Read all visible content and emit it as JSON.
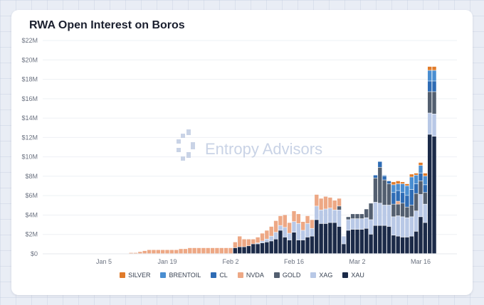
{
  "title": "RWA Open Interest on Boros",
  "watermark": "Entropy Advisors",
  "colors": {
    "SILVER": "#e07b2a",
    "BRENTOIL": "#4a8ed1",
    "CL": "#2e6cb5",
    "NVDA": "#eda885",
    "GOLD": "#535f70",
    "XAG": "#b8c8e6",
    "XAU": "#1b2a48",
    "grid": "#eef0f4",
    "watermark": "#c9d3e6"
  },
  "chart_data": {
    "type": "bar",
    "stacked": true,
    "ylim": [
      0,
      22000000
    ],
    "y_ticks": [
      0,
      2000000,
      4000000,
      6000000,
      8000000,
      10000000,
      12000000,
      14000000,
      16000000,
      18000000,
      20000000,
      22000000
    ],
    "y_tick_labels": [
      "$0",
      "$2M",
      "$4M",
      "$6M",
      "$8M",
      "$10M",
      "$12M",
      "$14M",
      "$16M",
      "$18M",
      "$20M",
      "$22M"
    ],
    "x_ticks": [
      "Jan 5",
      "Jan 19",
      "Feb 2",
      "Feb 16",
      "Mar 2",
      "Mar 16"
    ],
    "x_tick_dates": [
      "2025-01-05",
      "2025-01-19",
      "2025-02-02",
      "2025-02-16",
      "2025-03-02",
      "2025-03-16"
    ],
    "grid": "horizontal",
    "legend_position": "bottom",
    "dates": [
      "2025-01-09",
      "2025-01-10",
      "2025-01-11",
      "2025-01-12",
      "2025-01-13",
      "2025-01-14",
      "2025-01-15",
      "2025-01-16",
      "2025-01-17",
      "2025-01-18",
      "2025-01-19",
      "2025-01-20",
      "2025-01-21",
      "2025-01-22",
      "2025-01-23",
      "2025-01-24",
      "2025-01-25",
      "2025-01-26",
      "2025-01-27",
      "2025-01-28",
      "2025-01-29",
      "2025-01-30",
      "2025-01-31",
      "2025-02-01",
      "2025-02-02",
      "2025-02-03",
      "2025-02-04",
      "2025-02-05",
      "2025-02-06",
      "2025-02-07",
      "2025-02-08",
      "2025-02-09",
      "2025-02-10",
      "2025-02-11",
      "2025-02-12",
      "2025-02-13",
      "2025-02-14",
      "2025-02-15",
      "2025-02-16",
      "2025-02-17",
      "2025-02-18",
      "2025-02-19",
      "2025-02-20",
      "2025-02-21",
      "2025-02-22",
      "2025-02-23",
      "2025-02-24",
      "2025-02-25",
      "2025-02-26",
      "2025-02-27",
      "2025-02-28",
      "2025-03-01",
      "2025-03-02",
      "2025-03-03",
      "2025-03-04",
      "2025-03-05",
      "2025-03-06",
      "2025-03-07",
      "2025-03-08",
      "2025-03-09",
      "2025-03-10",
      "2025-03-11",
      "2025-03-12",
      "2025-03-13",
      "2025-03-14",
      "2025-03-15",
      "2025-03-16",
      "2025-03-17",
      "2025-03-18",
      "2025-03-19",
      "2025-03-20"
    ],
    "series": [
      {
        "name": "XAU",
        "values": [
          0,
          0,
          0,
          0,
          0,
          0,
          0,
          0,
          0,
          0,
          0,
          0,
          0,
          0,
          0,
          0,
          0,
          0,
          0,
          0,
          0,
          0,
          0,
          0,
          0,
          600000,
          700000,
          700000,
          800000,
          1000000,
          1000000,
          1100000,
          1200000,
          1300000,
          1500000,
          2400000,
          1700000,
          1400000,
          2200000,
          1400000,
          1400000,
          1700000,
          1800000,
          3500000,
          3100000,
          3100000,
          3200000,
          3200000,
          2800000,
          1000000,
          2400000,
          2500000,
          2500000,
          2500000,
          2600000,
          2000000,
          2900000,
          2900000,
          2900000,
          2800000,
          1900000,
          1800000,
          1700000,
          1700000,
          1800000,
          2300000,
          3800000,
          3200000,
          12300000,
          12100000,
          0
        ]
      },
      {
        "name": "XAG",
        "values": [
          0,
          0,
          0,
          0,
          0,
          0,
          0,
          0,
          0,
          0,
          0,
          0,
          0,
          0,
          0,
          0,
          0,
          0,
          0,
          0,
          0,
          0,
          0,
          0,
          0,
          0,
          0,
          0,
          0,
          0,
          100000,
          200000,
          300000,
          500000,
          700000,
          500000,
          1000000,
          700000,
          1100000,
          1700000,
          1000000,
          1400000,
          800000,
          1400000,
          1400000,
          1500000,
          1500000,
          1300000,
          1700000,
          800000,
          1100000,
          1100000,
          1100000,
          1100000,
          1100000,
          1500000,
          2400000,
          2300000,
          2100000,
          2200000,
          1900000,
          2100000,
          2100000,
          2000000,
          2000000,
          2100000,
          2300000,
          1900000,
          2200000,
          2300000,
          0
        ]
      },
      {
        "name": "GOLD",
        "values": [
          0,
          0,
          0,
          0,
          0,
          0,
          0,
          0,
          0,
          0,
          0,
          0,
          0,
          0,
          0,
          0,
          0,
          0,
          0,
          0,
          0,
          0,
          0,
          0,
          0,
          0,
          0,
          0,
          0,
          0,
          0,
          0,
          0,
          0,
          0,
          0,
          0,
          0,
          0,
          0,
          0,
          0,
          0,
          0,
          0,
          0,
          0,
          0,
          400000,
          0,
          300000,
          500000,
          500000,
          500000,
          900000,
          1700000,
          2500000,
          3700000,
          2600000,
          2200000,
          1300000,
          1200000,
          1400000,
          1100000,
          1200000,
          1800000,
          1400000,
          1200000,
          2200000,
          2300000,
          0
        ]
      },
      {
        "name": "NVDA",
        "values": [
          0,
          0,
          100000,
          100000,
          200000,
          300000,
          400000,
          400000,
          400000,
          400000,
          400000,
          400000,
          400000,
          500000,
          500000,
          600000,
          600000,
          600000,
          600000,
          600000,
          600000,
          600000,
          600000,
          600000,
          600000,
          600000,
          1100000,
          800000,
          700000,
          500000,
          600000,
          800000,
          900000,
          1000000,
          1200000,
          1000000,
          1300000,
          1100000,
          1100000,
          1000000,
          900000,
          800000,
          900000,
          1200000,
          1200000,
          1300000,
          1100000,
          1000000,
          800000,
          0,
          0,
          0,
          0,
          0,
          0,
          0,
          0,
          0,
          0,
          0,
          0,
          300000,
          0,
          0,
          0,
          0,
          0,
          0,
          0,
          0,
          0
        ]
      },
      {
        "name": "CL",
        "values": [
          0,
          0,
          0,
          0,
          0,
          0,
          0,
          0,
          0,
          0,
          0,
          0,
          0,
          0,
          0,
          0,
          0,
          0,
          0,
          0,
          0,
          0,
          0,
          0,
          0,
          0,
          0,
          0,
          0,
          0,
          0,
          0,
          0,
          0,
          0,
          0,
          0,
          0,
          0,
          0,
          0,
          0,
          0,
          0,
          0,
          0,
          0,
          0,
          0,
          0,
          0,
          0,
          0,
          0,
          0,
          0,
          300000,
          600000,
          400000,
          300000,
          1200000,
          1100000,
          1100000,
          1200000,
          1600000,
          1000000,
          800000,
          800000,
          1100000,
          1100000,
          0
        ]
      },
      {
        "name": "BRENTOIL",
        "values": [
          0,
          0,
          0,
          0,
          0,
          0,
          0,
          0,
          0,
          0,
          0,
          0,
          0,
          0,
          0,
          0,
          0,
          0,
          0,
          0,
          0,
          0,
          0,
          0,
          0,
          0,
          0,
          0,
          0,
          0,
          0,
          0,
          0,
          0,
          0,
          0,
          0,
          0,
          0,
          0,
          0,
          0,
          0,
          0,
          0,
          0,
          0,
          0,
          0,
          0,
          0,
          0,
          0,
          0,
          0,
          0,
          0,
          0,
          100000,
          0,
          800000,
          700000,
          900000,
          1000000,
          1300000,
          900000,
          800000,
          900000,
          1100000,
          1100000,
          0
        ]
      },
      {
        "name": "SILVER",
        "values": [
          0,
          0,
          0,
          0,
          0,
          0,
          0,
          0,
          0,
          0,
          0,
          0,
          0,
          0,
          0,
          0,
          0,
          0,
          0,
          0,
          0,
          0,
          0,
          0,
          0,
          0,
          0,
          0,
          0,
          0,
          0,
          0,
          0,
          0,
          0,
          0,
          0,
          0,
          0,
          0,
          0,
          0,
          0,
          0,
          0,
          0,
          0,
          0,
          0,
          0,
          0,
          0,
          0,
          0,
          0,
          0,
          0,
          0,
          0,
          0,
          300000,
          300000,
          200000,
          200000,
          300000,
          200000,
          300000,
          300000,
          400000,
          400000,
          0
        ]
      }
    ]
  },
  "legend": [
    "SILVER",
    "BRENTOIL",
    "CL",
    "NVDA",
    "GOLD",
    "XAG",
    "XAU"
  ]
}
